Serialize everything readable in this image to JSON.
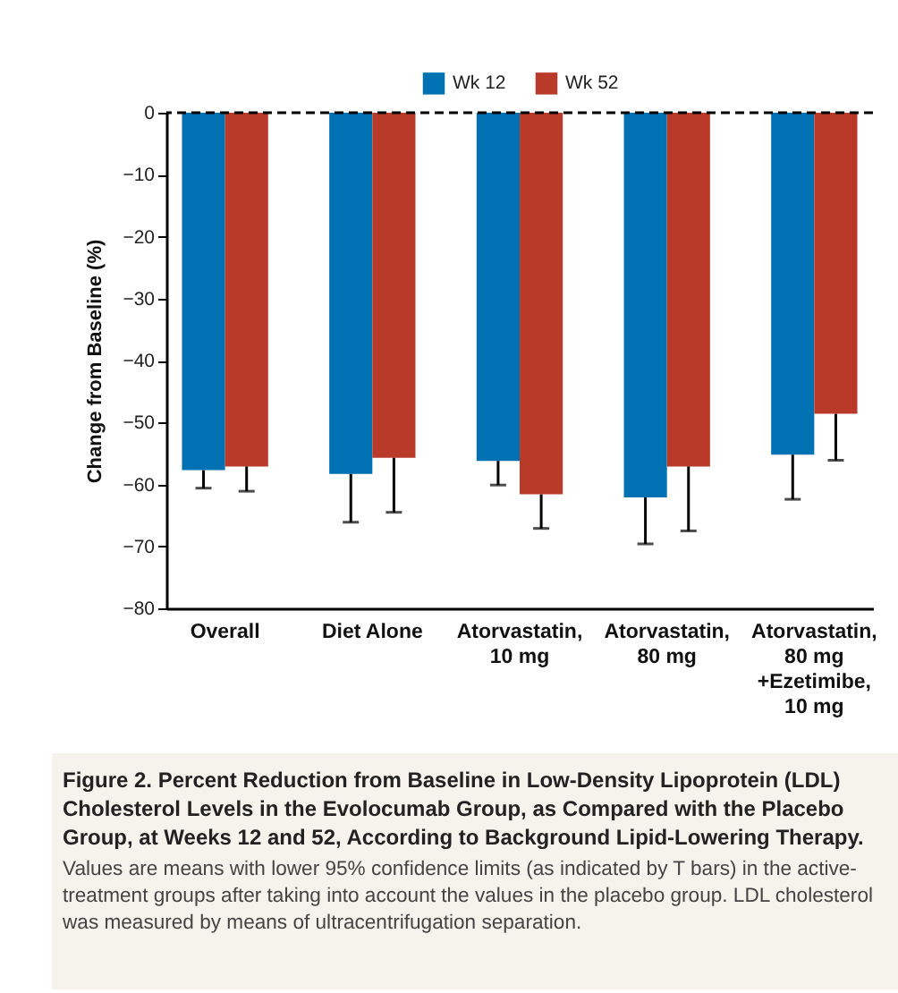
{
  "chart_data": {
    "type": "bar",
    "title": "Figure 2. Percent Reduction from Baseline in Low-Density Lipoprotein (LDL) Cholesterol Levels in the Evolocumab Group, as Compared with the Placebo Group, at Weeks 12 and 52, According to Background Lipid-Lowering Therapy.",
    "annotations": [
      "Values are means with lower 95% confidence limits (as indicated by T bars) in the active-treatment groups after taking into account the values in the placebo group. LDL cholesterol was measured by means of ultracentrifugation separation."
    ],
    "ylabel": "Change from Baseline (%)",
    "categories": [
      "Overall",
      "Diet Alone",
      "Atorvastatin, 10 mg",
      "Atorvastatin, 80 mg",
      "Atorvastatin, 80 mg +Ezetimibe, 10 mg"
    ],
    "series": [
      {
        "name": "Wk 12",
        "color": "#0071b3",
        "values": [
          -57.7,
          -58.3,
          -56.2,
          -62.1,
          -55.2
        ],
        "errors": [
          [
            -60.6,
            -57.7
          ],
          [
            -66.1,
            -58.3
          ],
          [
            -60.1,
            -56.2
          ],
          [
            -69.6,
            -62.1
          ],
          [
            -62.4,
            -55.2
          ]
        ]
      },
      {
        "name": "Wk 52",
        "color": "#b93a29",
        "values": [
          -57.1,
          -55.7,
          -61.6,
          -57.1,
          -48.6
        ],
        "errors": [
          [
            -61.1,
            -57.1
          ],
          [
            -64.5,
            -55.7
          ],
          [
            -67.1,
            -61.6
          ],
          [
            -67.5,
            -57.1
          ],
          [
            -56.1,
            -48.6
          ]
        ]
      }
    ],
    "ylim": [
      -80,
      0
    ],
    "yticks": [
      0,
      -10,
      -20,
      -30,
      -40,
      -50,
      -60,
      -70,
      -80
    ],
    "legend": "top",
    "ref_lines": [
      {
        "axis": "y",
        "value": 0,
        "line_style": "dashed",
        "color": "#000000"
      }
    ]
  }
}
